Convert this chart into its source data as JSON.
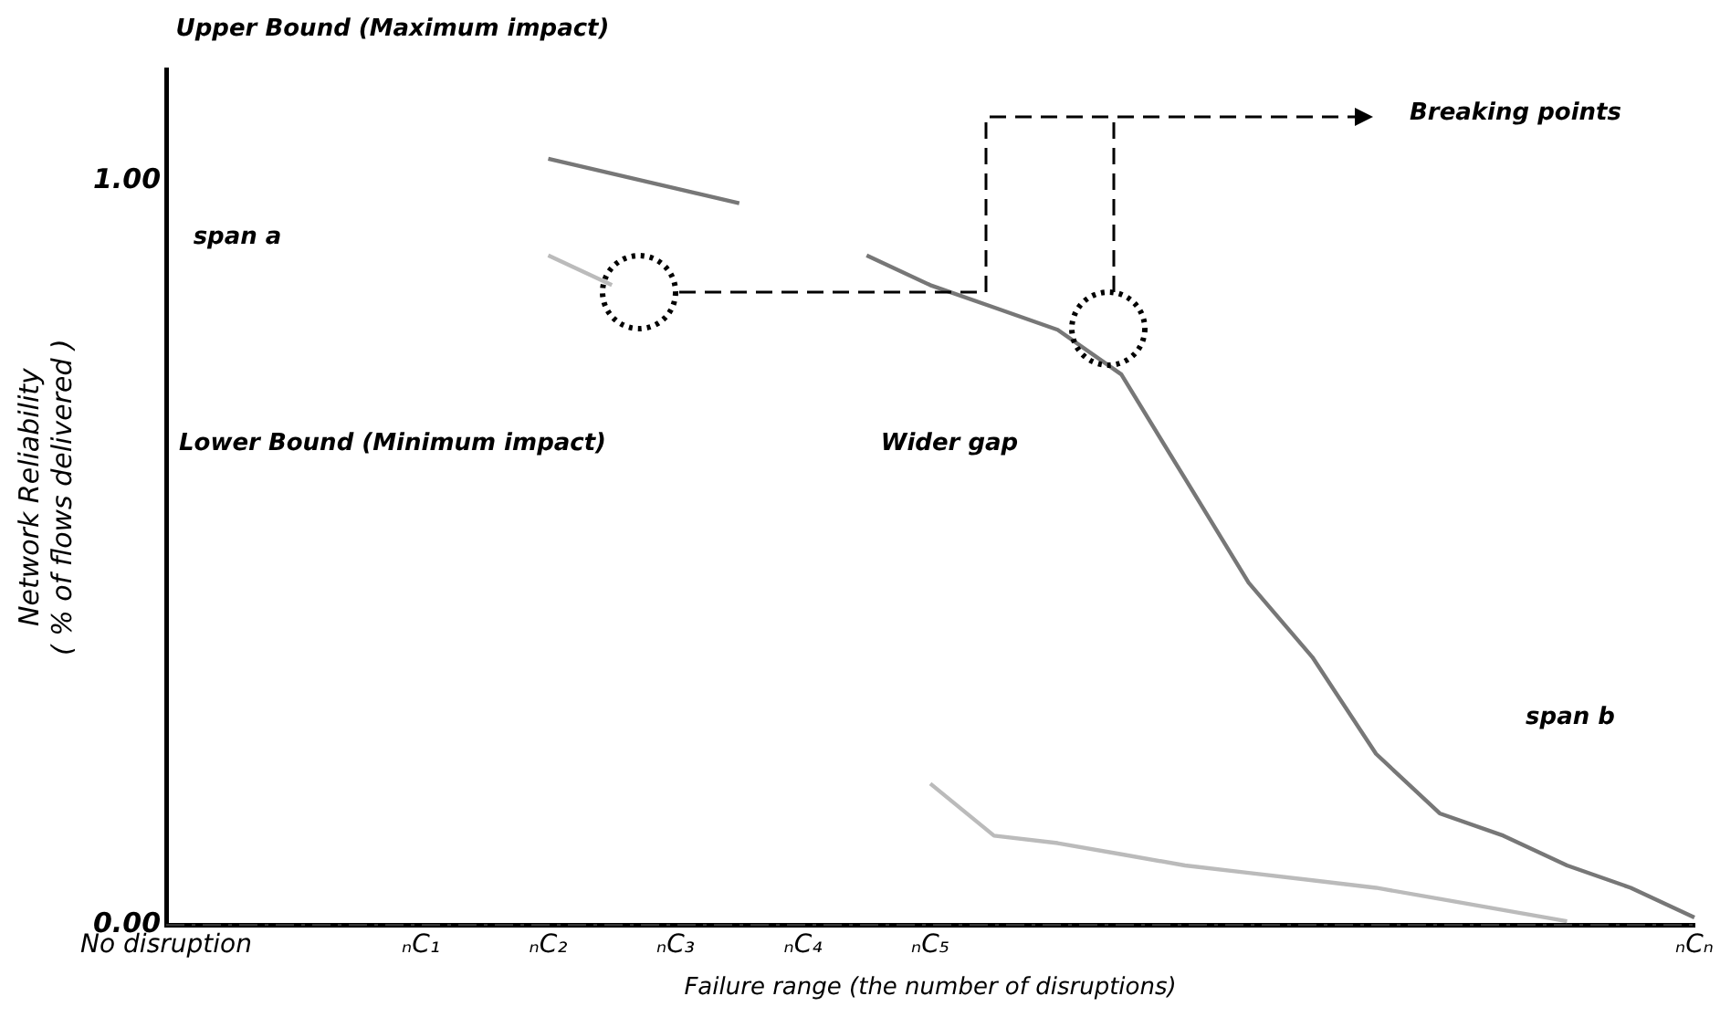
{
  "chart_data": {
    "type": "line",
    "xlabel": "Failure range (the number of disruptions)",
    "ylabel": "Network Reliability\n( % of flows delivered )",
    "categories": [
      "No disruption",
      null,
      null,
      null,
      "ₙC₁",
      null,
      "ₙC₂",
      null,
      "ₙC₃",
      null,
      "ₙC₄",
      null,
      "ₙC₅",
      null,
      null,
      null,
      null,
      null,
      null,
      null,
      null,
      null,
      null,
      null,
      "ₙCₙ"
    ],
    "ylim": [
      0,
      1.15
    ],
    "yticks": [
      {
        "value": 0,
        "label": "0.00"
      },
      {
        "value": 1,
        "label": "1.00"
      }
    ],
    "series": [
      {
        "color": "#777777",
        "values": [
          null,
          null,
          null,
          null,
          null,
          null,
          1.03,
          1.01,
          0.99,
          0.97,
          null,
          0.9,
          0.86,
          0.83,
          0.8,
          0.74,
          0.6,
          0.46,
          0.36,
          0.23,
          0.15,
          0.12,
          0.08,
          0.05,
          0.01
        ]
      },
      {
        "color": "#bbbbbb",
        "values": [
          null,
          null,
          null,
          null,
          null,
          null,
          0.9,
          0.86,
          null,
          null,
          null,
          null,
          0.19,
          0.12,
          0.11,
          0.095,
          0.08,
          0.07,
          0.06,
          0.05,
          0.035,
          0.02,
          0.005,
          null,
          null
        ]
      }
    ],
    "ref_lines": [
      {
        "axis": "y",
        "value": 0,
        "line_style": "dashed",
        "color": "#333333"
      }
    ],
    "annotations": [
      "Upper Bound (Maximum impact)",
      "Lower Bound (Minimum impact)",
      "span a",
      "span b",
      "Wider gap",
      "Breaking points"
    ],
    "grid": false,
    "legend": false,
    "marker": "none",
    "line_style": "solid"
  }
}
